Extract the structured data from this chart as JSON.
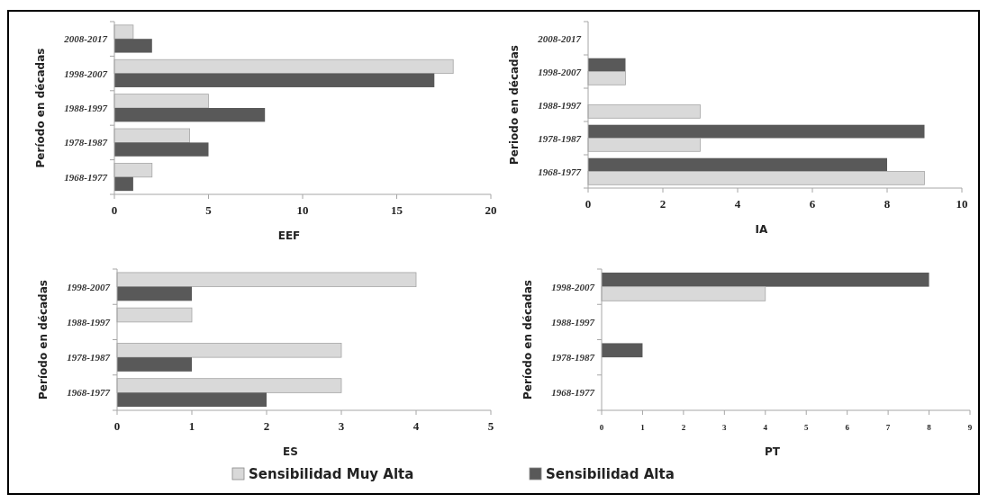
{
  "chart_data": [
    {
      "type": "bar",
      "orientation": "horizontal",
      "xlabel": "EEF",
      "ylabel": "Período en décadas",
      "categories": [
        "2008-2017",
        "1998-2007",
        "1988-1997",
        "1978-1987",
        "1968-1977"
      ],
      "xlim": [
        0,
        20
      ],
      "xticks": [
        0,
        5,
        10,
        15,
        20
      ],
      "legend": "bottom",
      "series": [
        {
          "name": "Sensibilidad Muy Alta",
          "color": "#d9d9d9",
          "values": [
            1,
            18,
            5,
            4,
            2
          ]
        },
        {
          "name": "Sensibilidad Alta",
          "color": "#595959",
          "values": [
            2,
            17,
            8,
            5,
            1
          ]
        }
      ]
    },
    {
      "type": "bar",
      "orientation": "horizontal",
      "xlabel": "IA",
      "ylabel": "Periodo en décadas",
      "categories": [
        "2008-2017",
        "1998-2007",
        "1988-1997",
        "1978-1987",
        "1968-1977"
      ],
      "xlim": [
        0,
        10
      ],
      "xticks": [
        0,
        2,
        4,
        6,
        8,
        10
      ],
      "legend": "bottom",
      "series": [
        {
          "name": "Sensibilidad Alta",
          "color": "#595959",
          "values": [
            0,
            1,
            0,
            9,
            8
          ]
        },
        {
          "name": "Sensibilidad Muy Alta",
          "color": "#d9d9d9",
          "values": [
            0,
            1,
            3,
            3,
            9
          ]
        }
      ]
    },
    {
      "type": "bar",
      "orientation": "horizontal",
      "xlabel": "ES",
      "ylabel": "Período en décadas",
      "categories": [
        "1998-2007",
        "1988-1997",
        "1978-1987",
        "1968-1977"
      ],
      "xlim": [
        0,
        5
      ],
      "xticks": [
        0,
        1,
        2,
        3,
        4,
        5
      ],
      "legend": "bottom",
      "series": [
        {
          "name": "Sensibilidad Muy Alta",
          "color": "#d9d9d9",
          "values": [
            4,
            1,
            3,
            3
          ]
        },
        {
          "name": "Sensibilidad Alta",
          "color": "#595959",
          "values": [
            1,
            0,
            1,
            2
          ]
        }
      ]
    },
    {
      "type": "bar",
      "orientation": "horizontal",
      "xlabel": "PT",
      "ylabel": "Período en décadas",
      "categories": [
        "1998-2007",
        "1988-1997",
        "1978-1987",
        "1968-1977"
      ],
      "xlim": [
        0,
        9
      ],
      "xticks": [
        0,
        1,
        2,
        3,
        4,
        5,
        6,
        7,
        8,
        9
      ],
      "legend": "bottom",
      "series": [
        {
          "name": "Sensibilidad Alta",
          "color": "#595959",
          "values": [
            8,
            0,
            1,
            0
          ]
        },
        {
          "name": "Sensibilidad Muy Alta",
          "color": "#d9d9d9",
          "values": [
            4,
            0,
            0,
            0
          ]
        }
      ]
    }
  ]
}
